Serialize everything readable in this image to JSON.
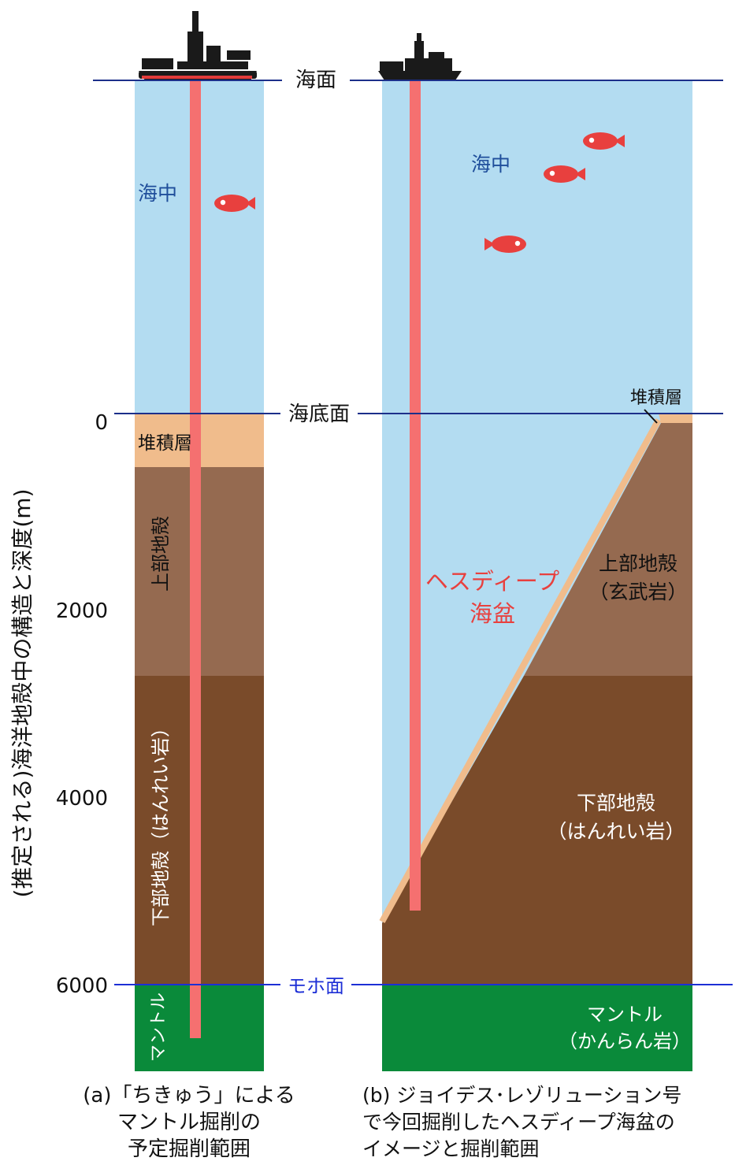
{
  "y_axis": {
    "label": "(推定される)海洋地殻中の構造と深度(m)",
    "ticks": [
      "0",
      "2000",
      "4000",
      "6000"
    ]
  },
  "lines": {
    "sea_surface": "海面",
    "seafloor": "海底面",
    "moho": "モホ面"
  },
  "panel_a": {
    "sea": "海中",
    "sediment": "堆積層",
    "upper_crust": "上部地殻",
    "lower_crust": "下部地殻（はんれい岩）",
    "mantle": "マントル",
    "caption": [
      "(a)「ちきゅう」による",
      "マントル掘削の",
      "予定掘削範囲"
    ]
  },
  "panel_b": {
    "sea": "海中",
    "sediment": "堆積層",
    "deep": [
      "ヘスディープ",
      "海盆"
    ],
    "upper_crust": [
      "上部地殻",
      "（玄武岩）"
    ],
    "lower_crust": [
      "下部地殻",
      "（はんれい岩）"
    ],
    "mantle": [
      "マントル",
      "（かんらん岩）"
    ],
    "caption": [
      "(b) ジョイデス･レゾリューション号",
      "で今回掘削したヘスディープ海盆の",
      "イメージと掘削範囲"
    ]
  },
  "colors": {
    "sea": "#b3dcf1",
    "sediment": "#f0bc8c",
    "upper_crust": "#956a50",
    "lower_crust": "#7a4b2a",
    "mantle": "#0a8a3a",
    "drill": "#f57070",
    "line": "#1c2f8a",
    "sea_text": "#1f4e9b",
    "deep_text": "#e8403e"
  }
}
